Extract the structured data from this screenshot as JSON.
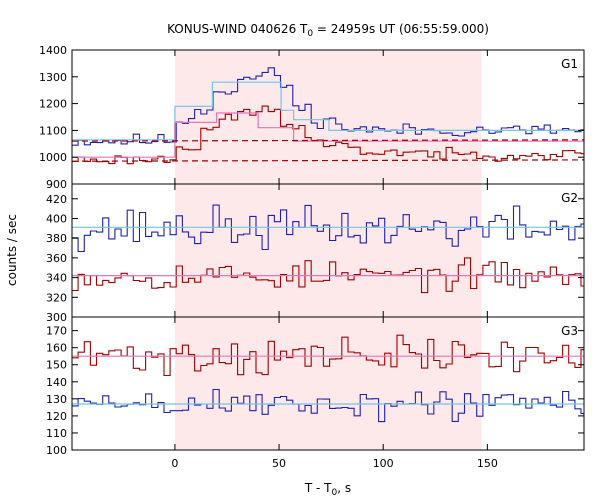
{
  "chart_data": {
    "type": "line",
    "title_main": "KONUS-WIND 040626 T",
    "title_sub": "0",
    "title_rest": " = 24959s UT (06:55:59.000)",
    "xlabel_main": "T - T",
    "xlabel_sub": "0",
    "xlabel_rest": ", s",
    "ylabel": "counts / sec",
    "xlim": [
      -49.4,
      196.4
    ],
    "x_ticks": [
      0,
      50,
      100,
      150
    ],
    "bin_width": 2.944,
    "highlight_interval": [
      0,
      147.2
    ],
    "colors": {
      "lightcurve_high": "#a00000",
      "lightcurve_low": "#2020b0",
      "hist_fit": "#6fc6e8",
      "bg_fit": "#e377b7",
      "interval_fill": "#fde8ea",
      "dashed": "#a00000"
    },
    "panels": [
      {
        "label": "G1",
        "ylim": [
          900,
          1400
        ],
        "yticks": [
          900,
          1000,
          1100,
          1200,
          1300,
          1400
        ],
        "series": [
          {
            "name": "",
            "color": "#2020b0",
            "kind": "step",
            "base": [
              -49.4,
              1060,
              1075
            ],
            "segments": [
              [
                0,
                1140
              ],
              [
                8,
                1180
              ],
              [
                18,
                1250
              ],
              [
                28,
                1290
              ],
              [
                38,
                1310
              ],
              [
                50,
                1270
              ],
              [
                55,
                1180
              ],
              [
                65,
                1140
              ],
              [
                75,
                1110
              ],
              [
                90,
                1100
              ],
              [
                196.4,
                1085
              ]
            ],
            "noise": 15,
            "seed": 11
          },
          {
            "name": "",
            "color": "#a00000",
            "kind": "step",
            "base": [
              -49.4,
              990,
              1005
            ],
            "segments": [
              [
                0,
                1040
              ],
              [
                10,
                1110
              ],
              [
                20,
                1140
              ],
              [
                30,
                1170
              ],
              [
                40,
                1175
              ],
              [
                50,
                1120
              ],
              [
                60,
                1060
              ],
              [
                70,
                1040
              ],
              [
                85,
                1020
              ],
              [
                120,
                1010
              ],
              [
                196.4,
                995
              ]
            ],
            "noise": 12,
            "seed": 23
          },
          {
            "name": "",
            "color": "#6fc6e8",
            "kind": "blocks",
            "points": [
              [
                -49.4,
                1065
              ],
              [
                0,
                1065
              ],
              [
                0,
                1190
              ],
              [
                18,
                1190
              ],
              [
                18,
                1280
              ],
              [
                51,
                1280
              ],
              [
                51,
                1175
              ],
              [
                57,
                1175
              ],
              [
                57,
                1140
              ],
              [
                74,
                1140
              ],
              [
                74,
                1100
              ],
              [
                196.4,
                1100
              ]
            ]
          },
          {
            "name": "",
            "color": "#e377b7",
            "kind": "blocks",
            "points": [
              [
                -49.4,
                1000
              ],
              [
                0,
                1000
              ],
              [
                0,
                1130
              ],
              [
                20,
                1130
              ],
              [
                20,
                1165
              ],
              [
                40,
                1165
              ],
              [
                40,
                1110
              ],
              [
                57,
                1110
              ],
              [
                57,
                1060
              ],
              [
                196.4,
                1060
              ]
            ]
          },
          {
            "name": "",
            "color": "#a00000",
            "kind": "dashed",
            "points": [
              [
                -49.4,
                1060
              ],
              [
                196.4,
                1065
              ]
            ]
          },
          {
            "name": "",
            "color": "#a00000",
            "kind": "dashed",
            "points": [
              [
                -49.4,
                985
              ],
              [
                196.4,
                990
              ]
            ]
          }
        ]
      },
      {
        "label": "G2",
        "ylim": [
          300,
          435
        ],
        "yticks": [
          300,
          320,
          340,
          360,
          380,
          400,
          420
        ],
        "series": [
          {
            "name": "",
            "color": "#2020b0",
            "kind": "noise",
            "mean": 390,
            "noise": 13,
            "seed": 37
          },
          {
            "name": "",
            "color": "#a00000",
            "kind": "noise",
            "mean": 342,
            "noise": 9,
            "seed": 53
          },
          {
            "name": "",
            "color": "#6fc6e8",
            "kind": "blocks",
            "points": [
              [
                -49.4,
                391
              ],
              [
                196.4,
                391
              ]
            ]
          },
          {
            "name": "",
            "color": "#e377b7",
            "kind": "blocks",
            "points": [
              [
                -49.4,
                342
              ],
              [
                196.4,
                342
              ]
            ]
          }
        ]
      },
      {
        "label": "G3",
        "ylim": [
          100,
          178
        ],
        "yticks": [
          100,
          110,
          120,
          130,
          140,
          150,
          160,
          170
        ],
        "series": [
          {
            "name": "",
            "color": "#a00000",
            "kind": "noise",
            "mean": 155,
            "noise": 7,
            "seed": 71
          },
          {
            "name": "",
            "color": "#2020b0",
            "kind": "noise",
            "mean": 127,
            "noise": 6,
            "seed": 89
          },
          {
            "name": "",
            "color": "#e377b7",
            "kind": "blocks",
            "points": [
              [
                -49.4,
                155
              ],
              [
                196.4,
                155
              ]
            ]
          },
          {
            "name": "",
            "color": "#6fc6e8",
            "kind": "blocks",
            "points": [
              [
                -49.4,
                127
              ],
              [
                196.4,
                127
              ]
            ]
          }
        ]
      }
    ]
  }
}
